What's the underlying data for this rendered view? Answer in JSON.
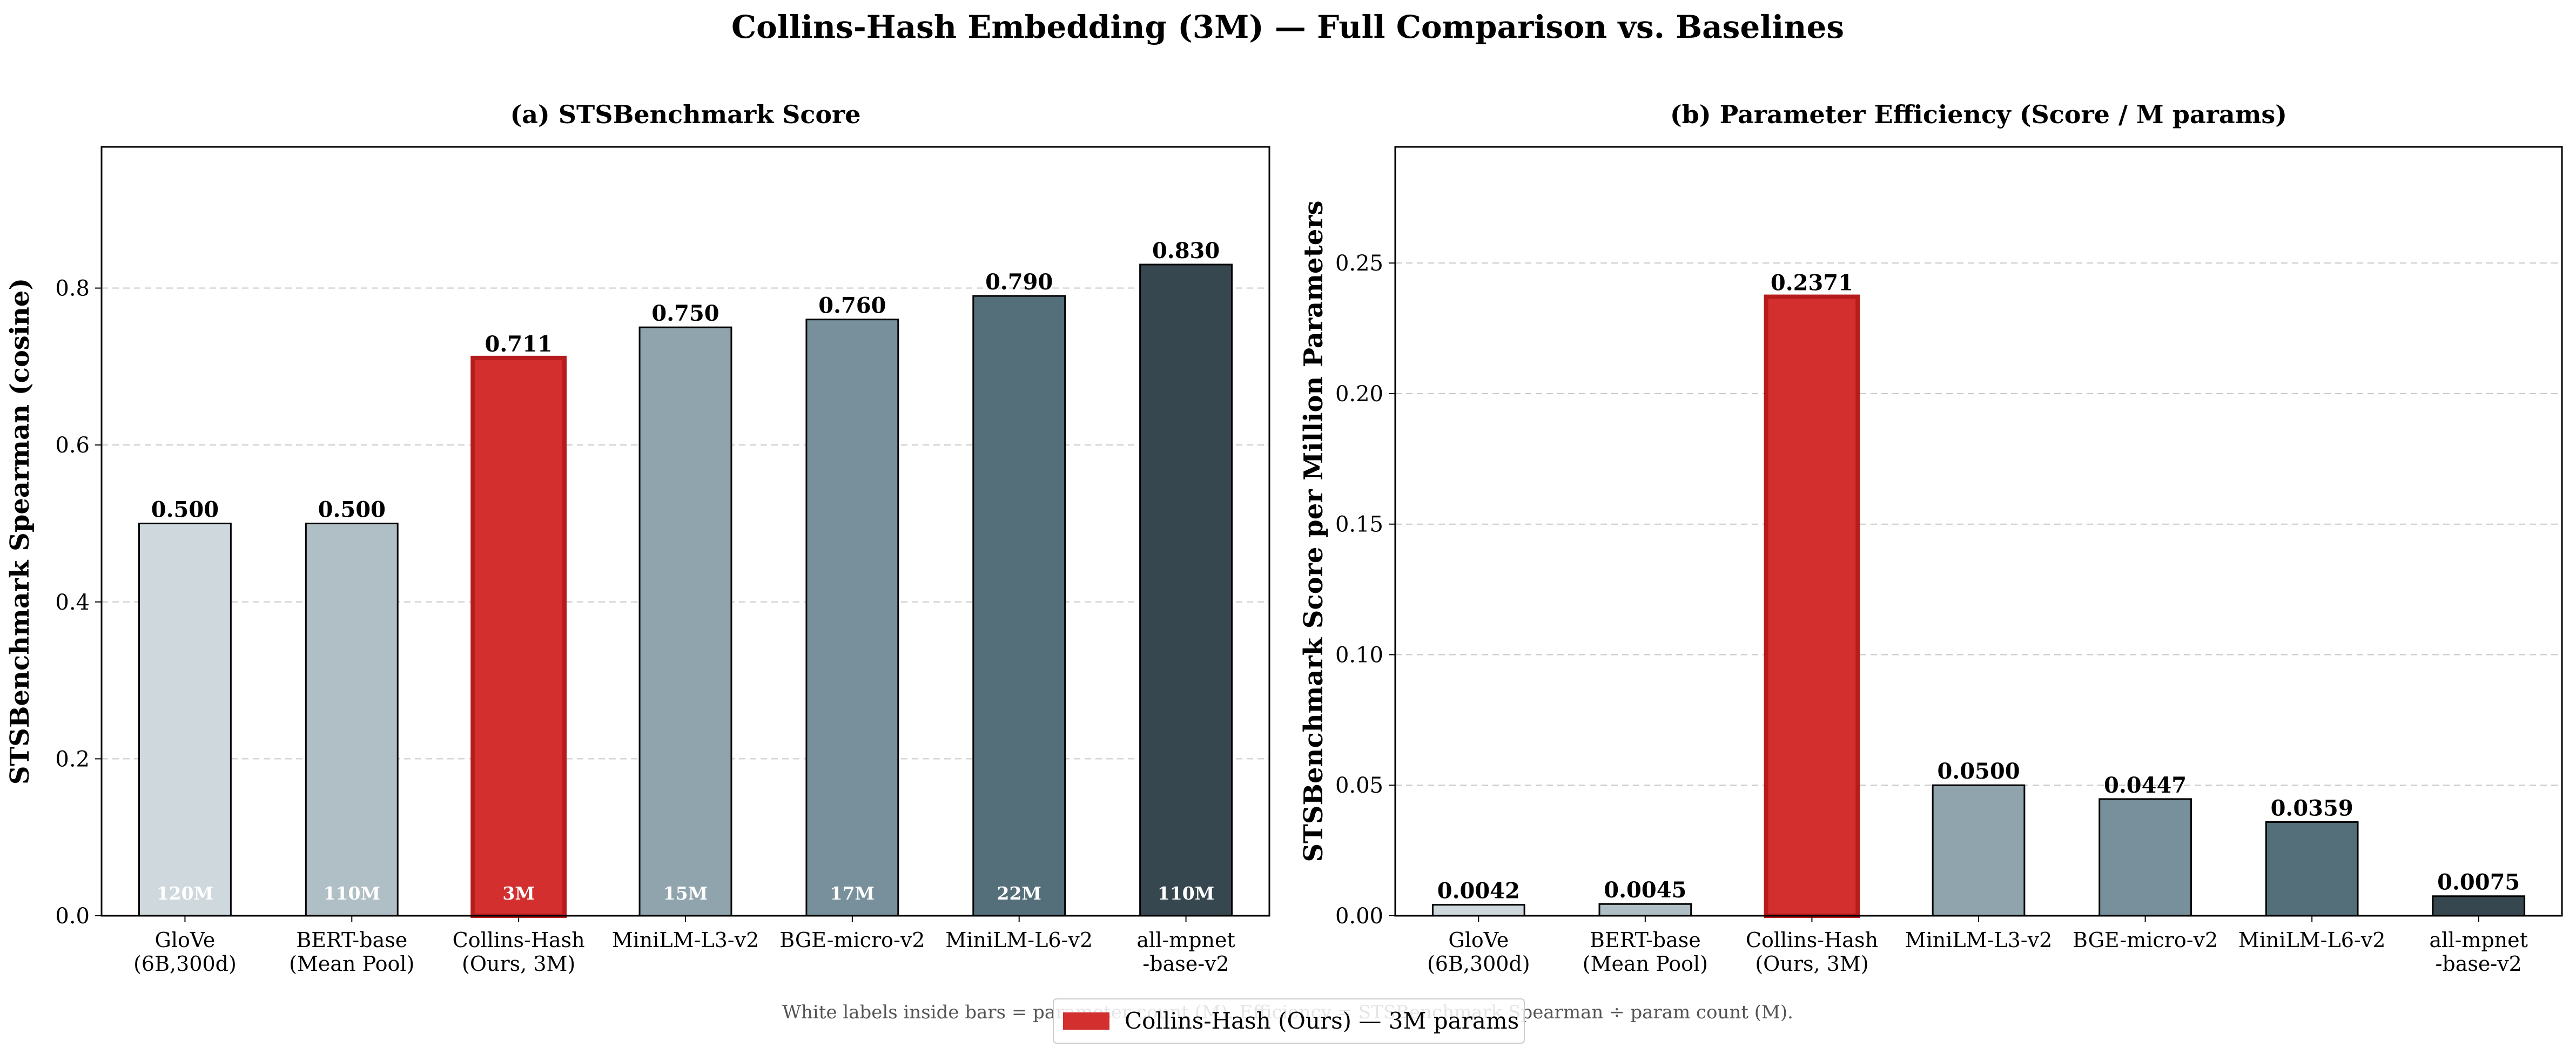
{
  "figure": {
    "title": "Collins-Hash Embedding (3M) — Full Comparison vs. Baselines",
    "footnote": "White labels inside bars = parameter count (M). Efficiency = STSBenchmark Spearman ÷ param count (M).",
    "legend": {
      "label": "Collins-Hash (Ours) — 3M params",
      "color": "#d32f2f",
      "placement": "bottom-center"
    }
  },
  "chart_data": [
    {
      "type": "bar",
      "title": "(a) STSBenchmark Score",
      "xlabel": "",
      "ylabel": "STSBenchmark Spearman (cosine)",
      "categories": [
        "GloVe\n(6B,300d)",
        "BERT-base\n(Mean Pool)",
        "Collins-Hash\n(Ours, 3M)",
        "MiniLM-L3-v2",
        "BGE-micro-v2",
        "MiniLM-L6-v2",
        "all-mpnet\n-base-v2"
      ],
      "values": [
        0.5,
        0.5,
        0.711,
        0.75,
        0.76,
        0.79,
        0.83
      ],
      "value_labels": [
        "0.500",
        "0.500",
        "0.711",
        "0.750",
        "0.760",
        "0.790",
        "0.830"
      ],
      "param_labels": [
        "120M",
        "110M",
        "3M",
        "15M",
        "17M",
        "22M",
        "110M"
      ],
      "colors": [
        "#cfd8dc",
        "#b0bec5",
        "#d32f2f",
        "#90a4ae",
        "#78909c",
        "#546e7a",
        "#37474f"
      ],
      "highlight_index": 2,
      "ylim": [
        0,
        0.98
      ],
      "yticks": [
        0.0,
        0.2,
        0.4,
        0.6,
        0.8
      ],
      "ytick_labels": [
        "0.0",
        "0.2",
        "0.4",
        "0.6",
        "0.8"
      ],
      "grid": "horizontal dashed"
    },
    {
      "type": "bar",
      "title": "(b) Parameter Efficiency (Score / M params)",
      "xlabel": "",
      "ylabel": "STSBenchmark Score per Million Parameters",
      "categories": [
        "GloVe\n(6B,300d)",
        "BERT-base\n(Mean Pool)",
        "Collins-Hash\n(Ours, 3M)",
        "MiniLM-L3-v2",
        "BGE-micro-v2",
        "MiniLM-L6-v2",
        "all-mpnet\n-base-v2"
      ],
      "values": [
        0.0042,
        0.0045,
        0.2371,
        0.05,
        0.0447,
        0.0359,
        0.0075
      ],
      "value_labels": [
        "0.0042",
        "0.0045",
        "0.2371",
        "0.0500",
        "0.0447",
        "0.0359",
        "0.0075"
      ],
      "colors": [
        "#cfd8dc",
        "#b0bec5",
        "#d32f2f",
        "#90a4ae",
        "#78909c",
        "#546e7a",
        "#37474f"
      ],
      "highlight_index": 2,
      "ylim": [
        0,
        0.2945
      ],
      "yticks": [
        0.0,
        0.05,
        0.1,
        0.15,
        0.2,
        0.25
      ],
      "ytick_labels": [
        "0.00",
        "0.05",
        "0.10",
        "0.15",
        "0.20",
        "0.25"
      ],
      "grid": "horizontal dashed"
    }
  ]
}
